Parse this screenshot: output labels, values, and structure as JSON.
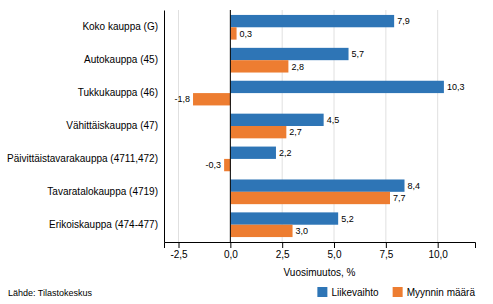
{
  "chart_data": {
    "type": "bar",
    "orientation": "horizontal",
    "categories": [
      "Koko kauppa (G)",
      "Autokauppa (45)",
      "Tukkukauppa (46)",
      "Vähittäiskauppa (47)",
      "Päivittäistavarakauppa (4711,472)",
      "Tavaratalokauppa (4719)",
      "Erikoiskauppa (474-477)"
    ],
    "series": [
      {
        "name": "Liikevaihto",
        "color": "#2E75B6",
        "values": [
          7.9,
          5.7,
          10.3,
          4.5,
          2.2,
          8.4,
          5.2
        ],
        "value_labels": [
          "7,9",
          "5,7",
          "10,3",
          "4,5",
          "2,2",
          "8,4",
          "5,2"
        ]
      },
      {
        "name": "Myynnin määrä",
        "color": "#ED7D31",
        "values": [
          0.3,
          2.8,
          -1.8,
          2.7,
          -0.3,
          7.7,
          3.0
        ],
        "value_labels": [
          "0,3",
          "2,8",
          "-1,8",
          "2,7",
          "-0,3",
          "7,7",
          "3,0"
        ]
      }
    ],
    "xlabel": "Vuosimuutos, %",
    "xlim": [
      -3.2,
      11.8
    ],
    "xticks": [
      {
        "value": -2.5,
        "label": "-2,5"
      },
      {
        "value": 0.0,
        "label": "0,0"
      },
      {
        "value": 2.5,
        "label": "2,5"
      },
      {
        "value": 5.0,
        "label": "5,0"
      },
      {
        "value": 7.5,
        "label": "7,5"
      },
      {
        "value": 10.0,
        "label": "10,0"
      }
    ],
    "grid": true,
    "legend": "lower right",
    "data_labels": true,
    "annotations": [
      "Lähde: Tilastokeskus"
    ]
  }
}
